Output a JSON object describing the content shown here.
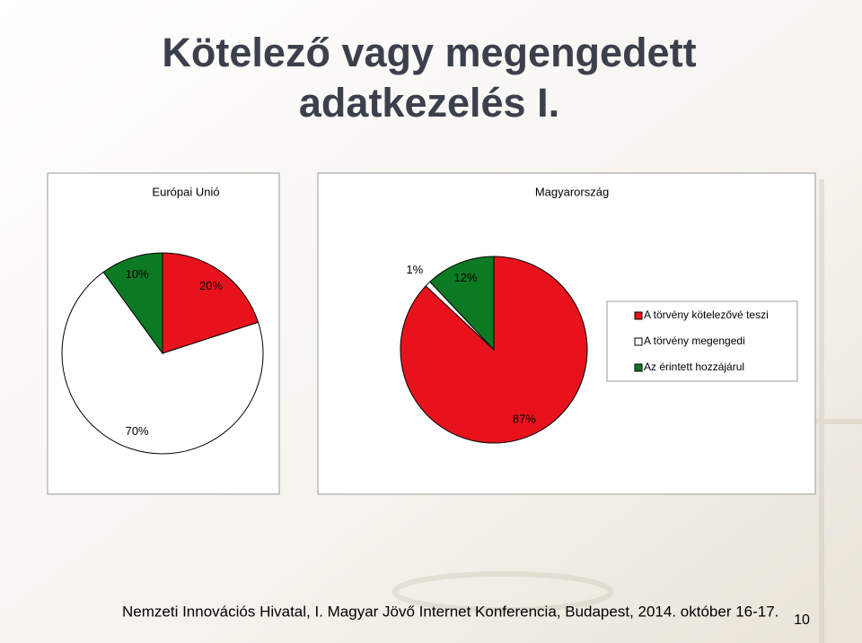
{
  "title": [
    "Kötelező vagy megengedett",
    "adatkezelés I."
  ],
  "legend": {
    "position": "right",
    "labels": [
      "A törvény kötelezővé teszi",
      "A törvény megengedi",
      "Az érintett hozzájárul"
    ],
    "colors": [
      "#e8121c",
      "#ffffff",
      "#0b7a22"
    ]
  },
  "chart_data": [
    {
      "type": "pie",
      "title": "Európai Unió",
      "values": [
        20,
        70,
        10
      ],
      "value_labels": [
        "20%",
        "70%",
        "10%"
      ]
    },
    {
      "type": "pie",
      "title": "Magyarország",
      "values": [
        87,
        1,
        12
      ],
      "value_labels": [
        "87%",
        "1%",
        "12%"
      ]
    }
  ],
  "footer": "Nemzeti Innovációs Hivatal, I. Magyar Jövő Internet Konferencia, Budapest, 2014. október 16-17.",
  "page_number": "10"
}
